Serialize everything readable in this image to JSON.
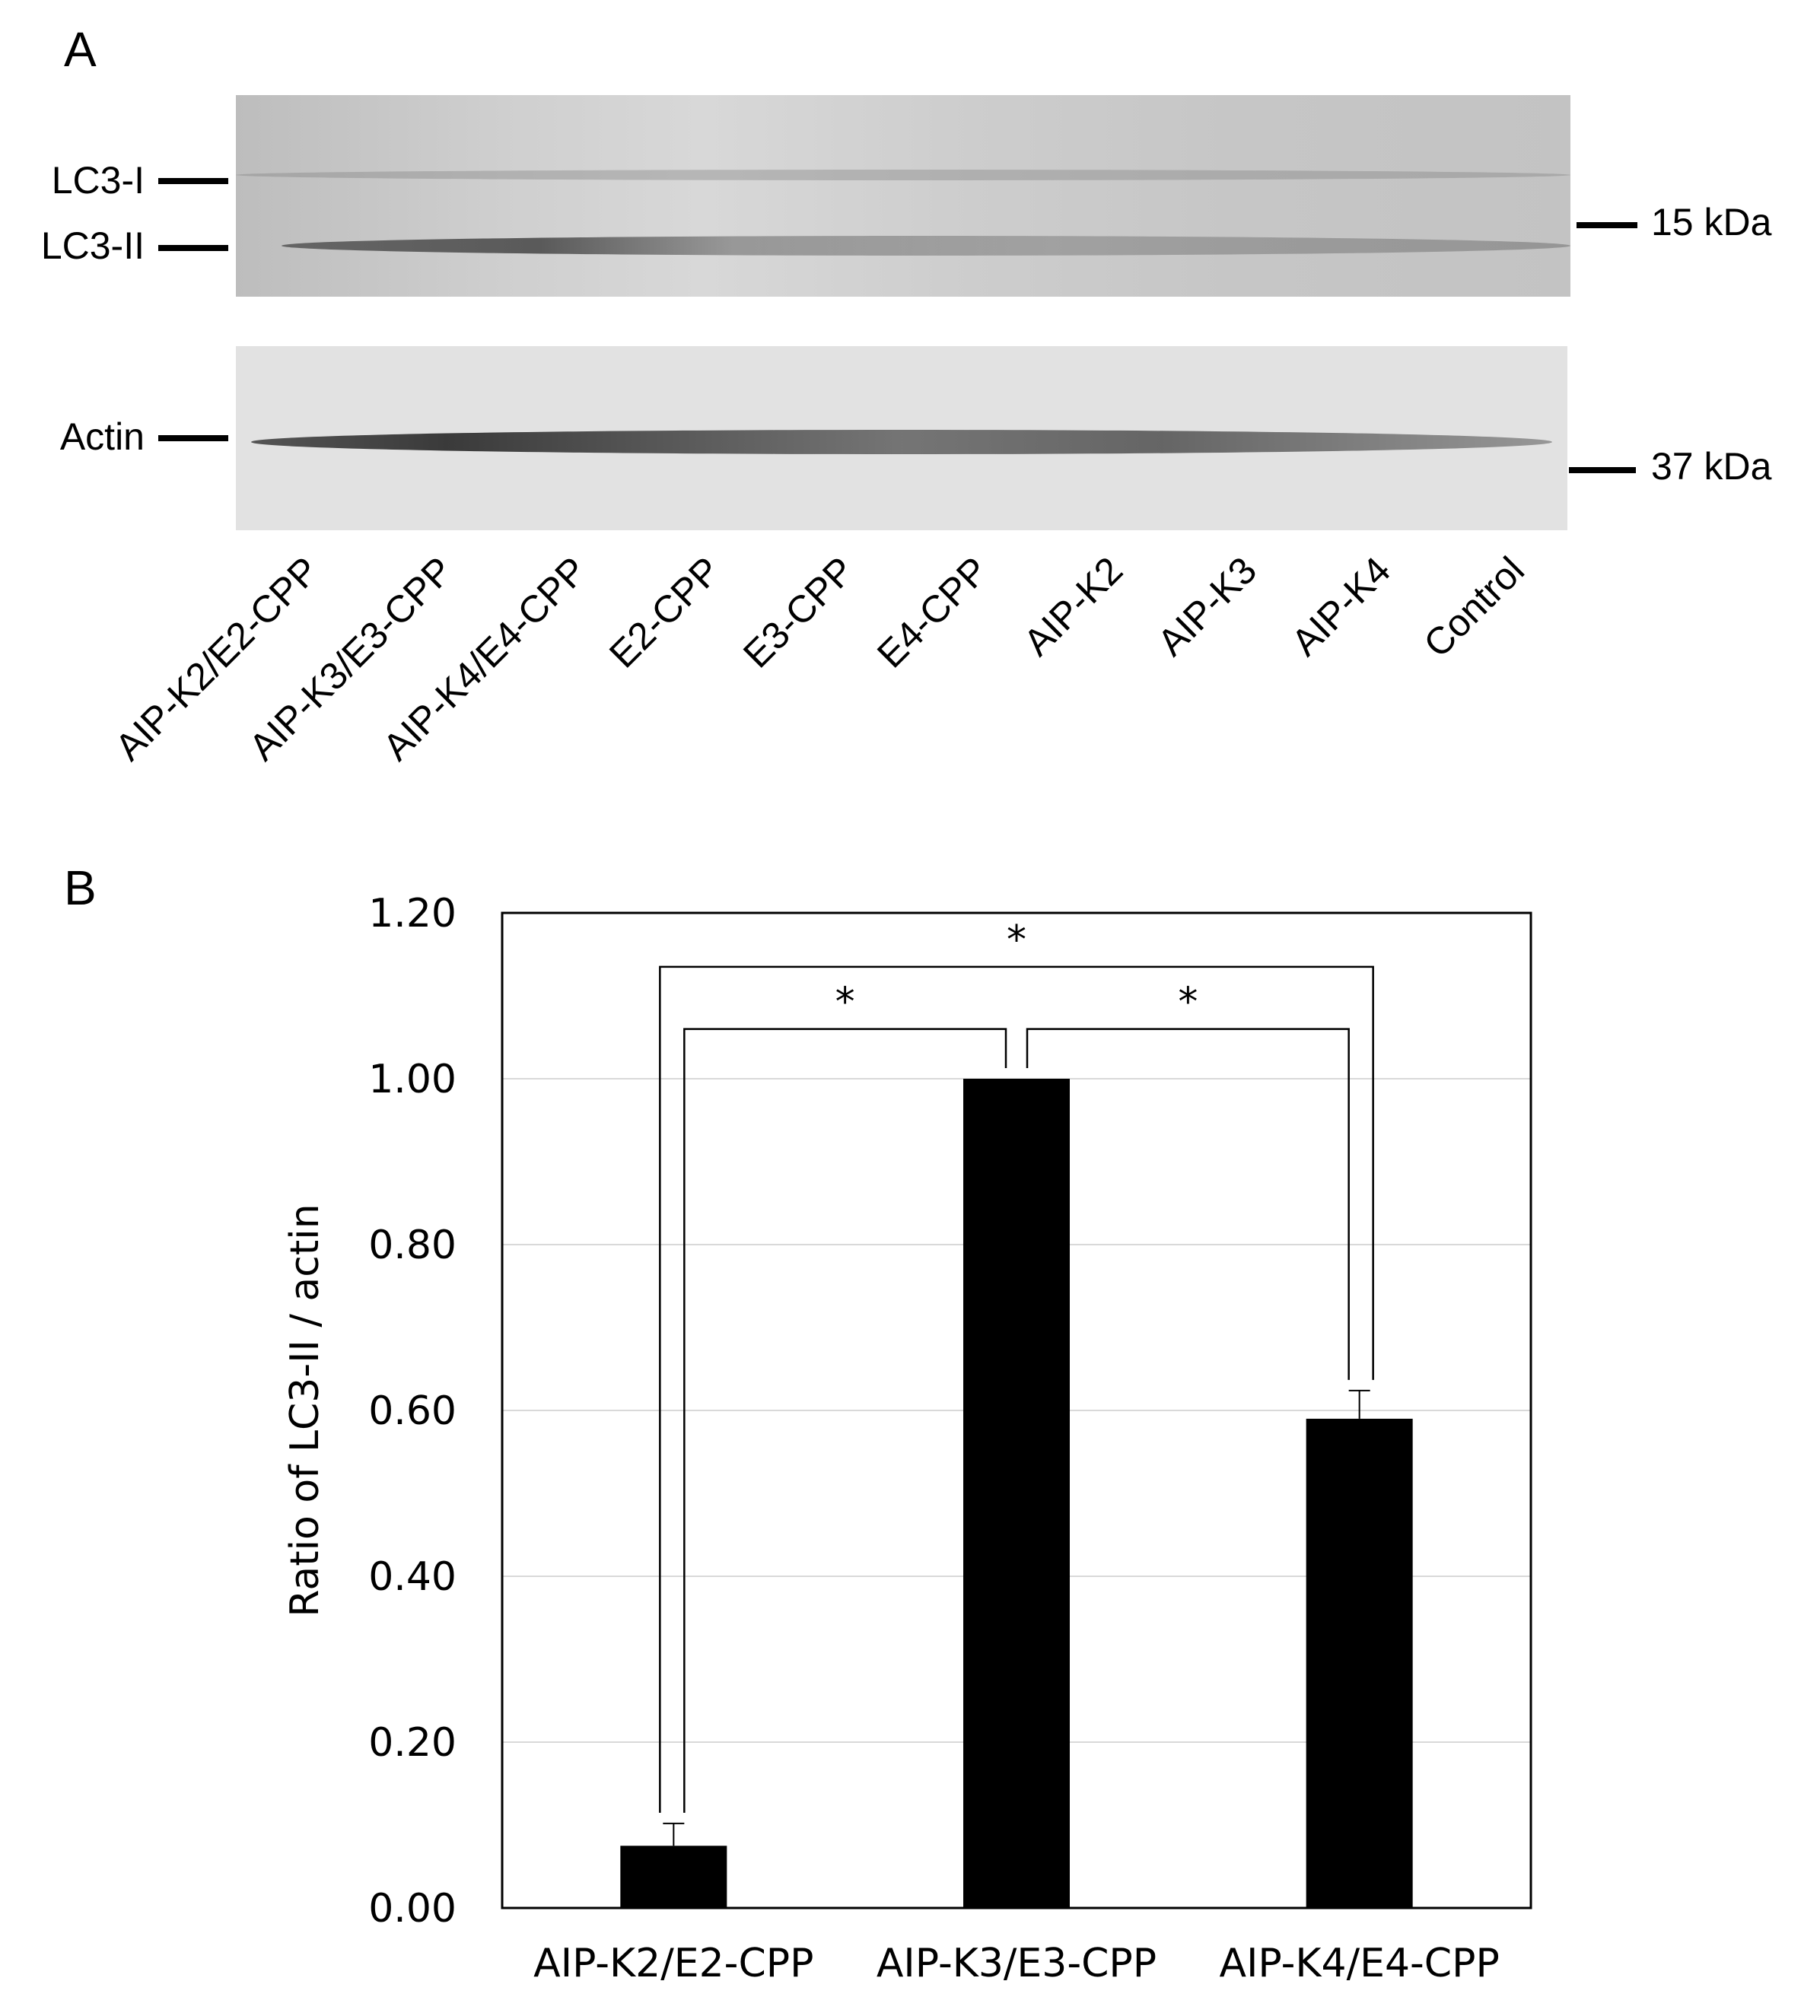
{
  "panel_a": {
    "letter": "A",
    "left_labels": {
      "lc3_i": "LC3-I",
      "lc3_ii": "LC3-II",
      "actin": "Actin"
    },
    "right_labels": {
      "kda15": "15 kDa",
      "kda37": "37 kDa"
    },
    "lanes": [
      "AIP-K2/E2-CPP",
      "AIP-K3/E3-CPP",
      "AIP-K4/E4-CPP",
      "E2-CPP",
      "E3-CPP",
      "E4-CPP",
      "AIP-K2",
      "AIP-K3",
      "AIP-K4",
      "Control"
    ]
  },
  "panel_b": {
    "letter": "B"
  },
  "chart_data": {
    "type": "bar",
    "categories": [
      "AIP-K2/E2-CPP",
      "AIP-K3/E3-CPP",
      "AIP-K4/E4-CPP"
    ],
    "values": [
      0.075,
      1.0,
      0.59
    ],
    "error_bars": [
      0.027,
      0.0,
      0.034
    ],
    "ylabel": "Ratio of LC3-II / actin",
    "xlabel": "",
    "ylim": [
      0,
      1.2
    ],
    "yticks": [
      "0.00",
      "0.20",
      "0.40",
      "0.60",
      "0.80",
      "1.00",
      "1.20"
    ],
    "grid": true,
    "bar_color": "#000000",
    "significance": [
      {
        "pair": [
          "AIP-K2/E2-CPP",
          "AIP-K3/E3-CPP"
        ],
        "label": "*"
      },
      {
        "pair": [
          "AIP-K3/E3-CPP",
          "AIP-K4/E4-CPP"
        ],
        "label": "*"
      },
      {
        "pair": [
          "AIP-K2/E2-CPP",
          "AIP-K4/E4-CPP"
        ],
        "label": "*"
      }
    ]
  }
}
